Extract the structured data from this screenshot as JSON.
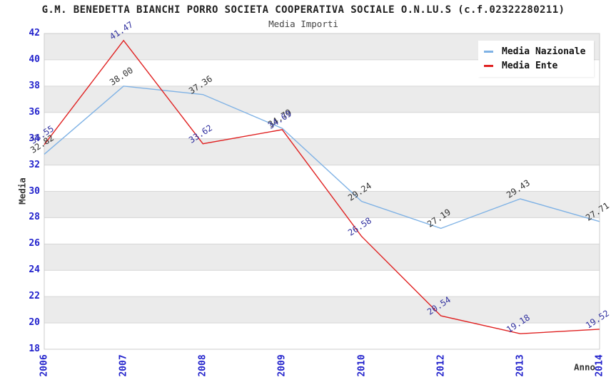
{
  "header": {
    "title": "G.M. BENEDETTA BIANCHI PORRO SOCIETA COOPERATIVA SOCIALE O.N.LU.S (c.f.02322280211)",
    "subtitle": "Media Importi"
  },
  "axes": {
    "y_label": "Media",
    "x_label": "Anno",
    "y_ticks": [
      "42",
      "40",
      "38",
      "36",
      "34",
      "32",
      "30",
      "28",
      "26",
      "24",
      "22",
      "20",
      "18"
    ],
    "x_ticks": [
      "2006",
      "2007",
      "2008",
      "2009",
      "2010",
      "2012",
      "2013",
      "2014"
    ],
    "tick_color": "#2222cc"
  },
  "legend": {
    "position": "top-right",
    "items": [
      {
        "label": "Media Nazionale",
        "color": "#7fb2e5"
      },
      {
        "label": "Media Ente",
        "color": "#e02222"
      }
    ]
  },
  "chart_data": {
    "type": "line",
    "title": "G.M. BENEDETTA BIANCHI PORRO SOCIETA COOPERATIVA SOCIALE O.N.LU.S (c.f.02322280211)",
    "subtitle": "Media Importi",
    "xlabel": "Anno",
    "ylabel": "Media",
    "categories": [
      "2006",
      "2007",
      "2008",
      "2009",
      "2010",
      "2012",
      "2013",
      "2014"
    ],
    "series": [
      {
        "name": "Media Nazionale",
        "color": "#7fb2e5",
        "label_color": "#333333",
        "values": [
          32.82,
          38.0,
          37.36,
          34.79,
          29.24,
          27.19,
          29.43,
          27.71
        ]
      },
      {
        "name": "Media Ente",
        "color": "#e02222",
        "label_color": "#3333a0",
        "values": [
          33.55,
          41.47,
          33.62,
          34.69,
          26.58,
          20.54,
          19.18,
          19.52
        ]
      }
    ],
    "ylim": [
      18,
      42
    ],
    "ytick_step": 2,
    "grid": true,
    "legend_position": "top-right",
    "value_label_decimals": 2
  },
  "style": {
    "band_gray": "#ebebeb",
    "band_white": "#ffffff",
    "grid_color": "#d6d6d6",
    "border_color": "#cccccc"
  }
}
